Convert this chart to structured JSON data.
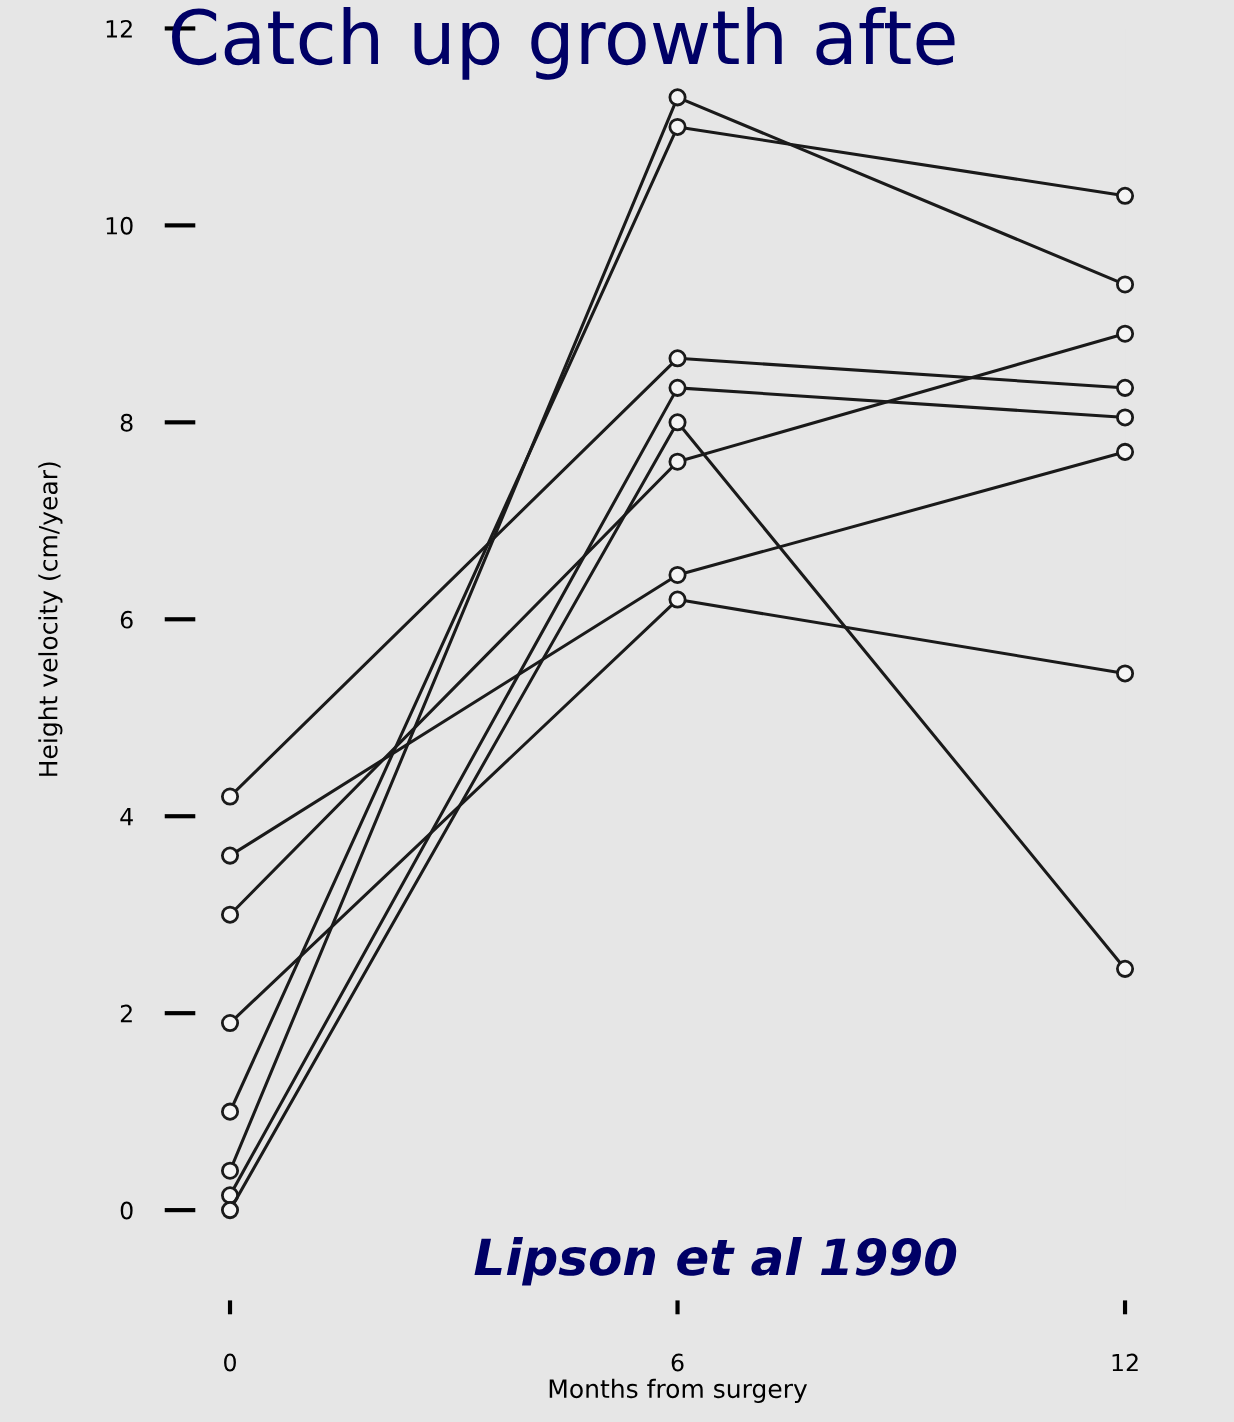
{
  "chart_data": {
    "type": "line",
    "title": "Catch up growth afte",
    "xlabel": "Months from surgery",
    "ylabel": "Height velocity (cm/year)",
    "annotations": [
      "Lipson et al 1990"
    ],
    "x": [
      0,
      6,
      12
    ],
    "xlim": [
      0,
      12
    ],
    "xticks": [
      0,
      6,
      12
    ],
    "ylim": [
      0,
      12
    ],
    "yticks": [
      0,
      2,
      4,
      6,
      8,
      10,
      12
    ],
    "marker": "circle",
    "line_style": "solid",
    "grid": false,
    "legend": false,
    "series": [
      {
        "color": "#1a1a1a",
        "values": [
          4.2,
          8.65,
          8.35
        ]
      },
      {
        "color": "#1a1a1a",
        "values": [
          3.6,
          6.45,
          7.7
        ]
      },
      {
        "color": "#1a1a1a",
        "values": [
          3.0,
          7.6,
          8.9
        ]
      },
      {
        "color": "#1a1a1a",
        "values": [
          1.9,
          6.2,
          5.45
        ]
      },
      {
        "color": "#1a1a1a",
        "values": [
          1.0,
          11.0,
          10.3
        ]
      },
      {
        "color": "#1a1a1a",
        "values": [
          0.4,
          11.3,
          9.4
        ]
      },
      {
        "color": "#1a1a1a",
        "values": [
          0.15,
          8.35,
          8.05
        ]
      },
      {
        "color": "#1a1a1a",
        "values": [
          0,
          8.0,
          2.45
        ]
      }
    ]
  }
}
